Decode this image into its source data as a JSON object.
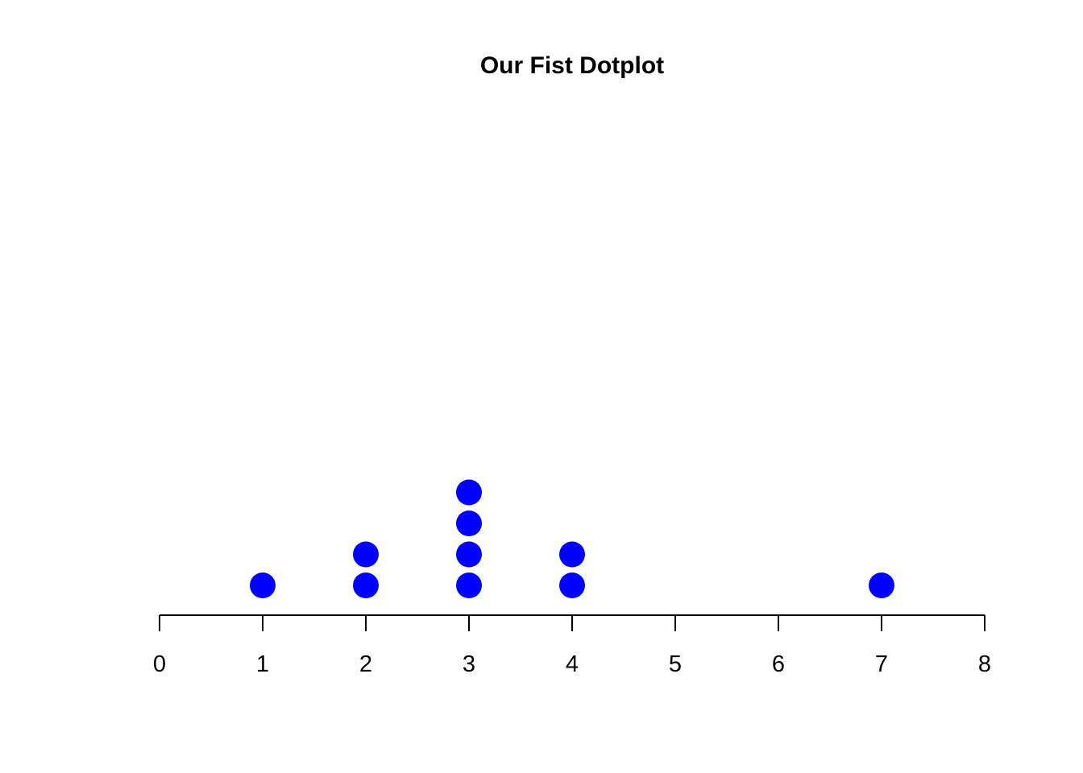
{
  "chart_data": {
    "type": "scatter",
    "subtype": "dotplot",
    "title": "Our Fist Dotplot",
    "xlabel": "",
    "ylabel": "",
    "xlim": [
      0,
      8
    ],
    "xticks": [
      0,
      1,
      2,
      3,
      4,
      5,
      6,
      7,
      8
    ],
    "grid": false,
    "dot_color": "#0000ff",
    "values": [
      1,
      2,
      2,
      3,
      3,
      3,
      3,
      4,
      4,
      7
    ]
  }
}
